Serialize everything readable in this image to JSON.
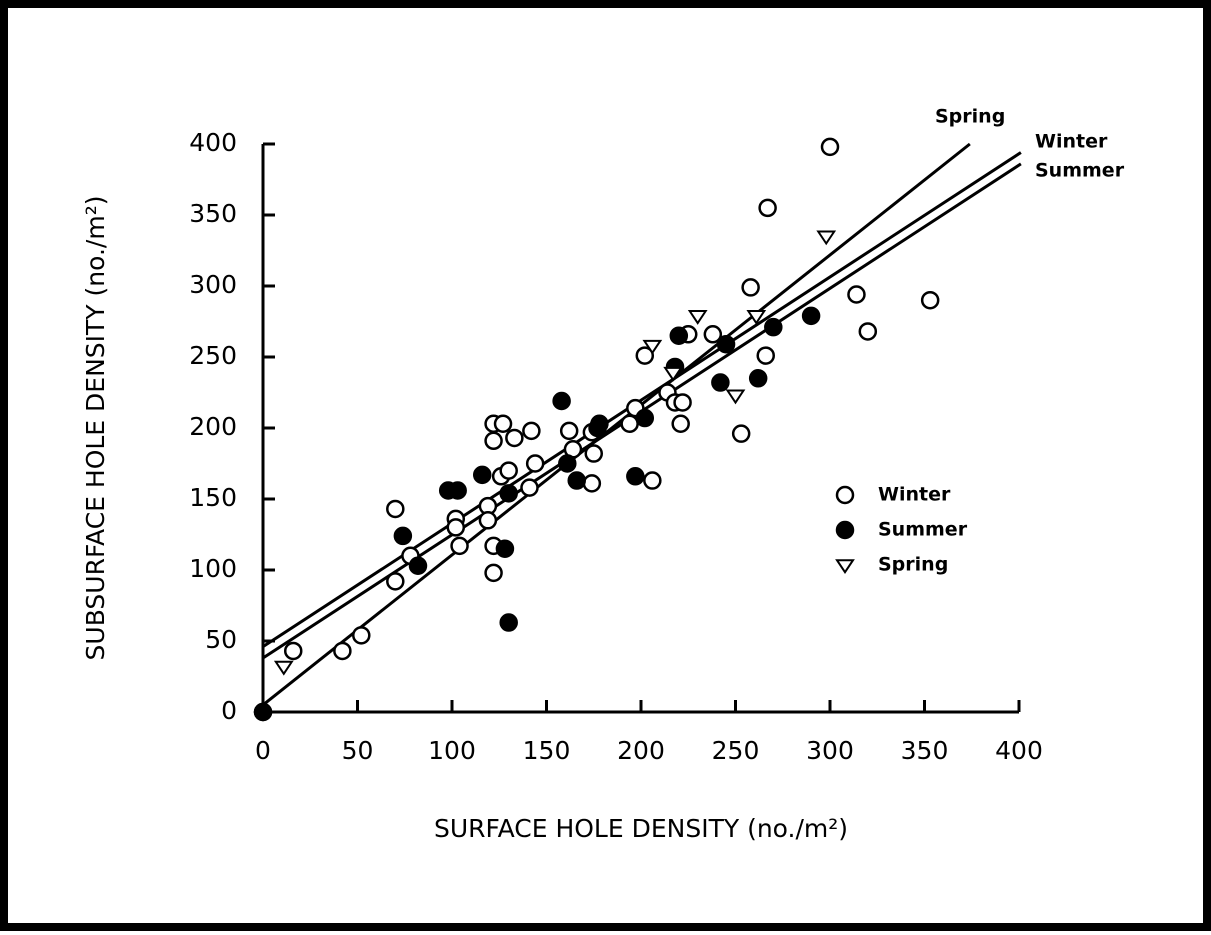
{
  "chart_data": {
    "type": "scatter",
    "xlabel": "SURFACE HOLE DENSITY (no./m²)",
    "ylabel": "SUBSURFACE HOLE DENSITY (no./m²)",
    "xlim": [
      0,
      400
    ],
    "ylim": [
      0,
      400
    ],
    "xticks": [
      0,
      50,
      100,
      150,
      200,
      250,
      300,
      350,
      400
    ],
    "yticks": [
      0,
      50,
      100,
      150,
      200,
      250,
      300,
      350,
      400
    ],
    "series": [
      {
        "name": "Winter",
        "marker": "open-circle",
        "color": "#000000",
        "x": [
          0,
          16,
          42,
          52,
          70,
          70,
          78,
          102,
          102,
          104,
          119,
          119,
          122,
          122,
          122,
          122,
          127,
          126,
          130,
          133,
          142,
          144,
          141,
          162,
          164,
          174,
          174,
          175,
          194,
          197,
          202,
          206,
          214,
          218,
          222,
          221,
          225,
          238,
          253,
          258,
          266,
          267,
          300,
          314,
          320,
          353
        ],
        "values": [
          0,
          43,
          43,
          54,
          92,
          143,
          110,
          136,
          130,
          117,
          145,
          135,
          117,
          98,
          203,
          191,
          203,
          166,
          170,
          193,
          198,
          175,
          158,
          198,
          185,
          197,
          161,
          182,
          203,
          214,
          251,
          163,
          225,
          218,
          218,
          203,
          266,
          266,
          196,
          299,
          251,
          355,
          398,
          294,
          268,
          290
        ]
      },
      {
        "name": "Summer",
        "marker": "filled-circle",
        "color": "#000000",
        "x": [
          0,
          74,
          82,
          98,
          103,
          116,
          128,
          130,
          130,
          158,
          161,
          166,
          177,
          178,
          197,
          202,
          218,
          220,
          242,
          245,
          262,
          270,
          290
        ],
        "values": [
          0,
          124,
          103,
          156,
          156,
          167,
          115,
          63,
          154,
          219,
          175,
          163,
          200,
          203,
          166,
          207,
          243,
          265,
          232,
          259,
          235,
          271,
          279
        ]
      },
      {
        "name": "Spring",
        "marker": "open-triangle",
        "color": "#000000",
        "x": [
          11,
          206,
          217,
          230,
          250,
          261,
          298
        ],
        "values": [
          32,
          258,
          239,
          279,
          223,
          279,
          335
        ]
      }
    ],
    "lines": [
      {
        "name": "Spring",
        "x": [
          0,
          374
        ],
        "y": [
          5,
          400
        ]
      },
      {
        "name": "Winter",
        "x": [
          0,
          401
        ],
        "y": [
          46,
          394
        ]
      },
      {
        "name": "Summer",
        "x": [
          0,
          401
        ],
        "y": [
          38,
          386
        ]
      }
    ],
    "legend": "center-right"
  }
}
